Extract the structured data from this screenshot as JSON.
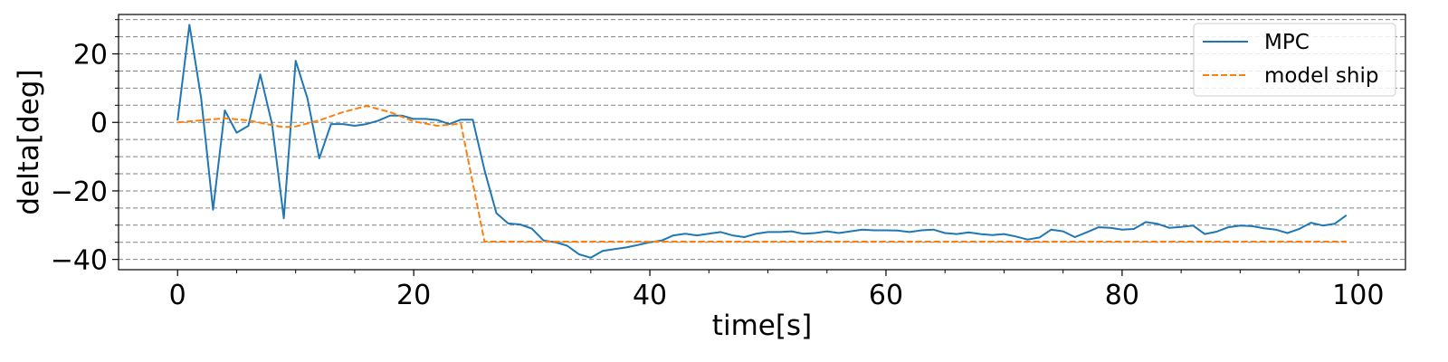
{
  "chart_data": {
    "type": "line",
    "title": "",
    "xlabel": "time[s]",
    "ylabel": "delta[deg]",
    "xlim": [
      -5,
      104
    ],
    "ylim": [
      -43,
      31.5
    ],
    "x_ticks": [
      0,
      20,
      40,
      60,
      80,
      100
    ],
    "x_tick_labels": [
      "0",
      "20",
      "40",
      "60",
      "80",
      "100"
    ],
    "x_minor_ticks": [
      5,
      10,
      15,
      25,
      30,
      35,
      45,
      50,
      55,
      65,
      70,
      75,
      85,
      90,
      95
    ],
    "y_ticks": [
      20,
      0,
      -20,
      -40
    ],
    "y_tick_labels": [
      "20",
      "0",
      "−20",
      "−40"
    ],
    "y_minor_ticks": [
      30,
      25,
      15,
      10,
      5,
      -5,
      -10,
      -15,
      -25,
      -30,
      -35
    ],
    "grid": {
      "axis": "y",
      "style": "dashed",
      "color": "#808080",
      "lines": [
        30,
        25,
        20,
        15,
        10,
        5,
        0,
        -5,
        -10,
        -15,
        -20,
        -25,
        -30,
        -35,
        -40
      ]
    },
    "legend": "top-right",
    "series": [
      {
        "name": "MPC",
        "color": "#1f77b4",
        "style": "solid",
        "x": [
          0,
          1,
          2,
          3,
          4,
          5,
          6,
          7,
          8,
          9,
          10,
          11,
          12,
          13,
          14,
          15,
          16,
          17,
          18,
          19,
          20,
          21,
          22,
          23,
          24,
          25,
          26,
          27,
          28,
          29,
          30,
          31,
          32,
          33,
          34,
          35,
          36,
          37,
          38,
          39,
          40,
          41,
          42,
          43,
          44,
          45,
          46,
          47,
          48,
          49,
          50,
          51,
          52,
          53,
          54,
          55,
          56,
          57,
          58,
          59,
          60,
          61,
          62,
          63,
          64,
          65,
          66,
          67,
          68,
          69,
          70,
          71,
          72,
          73,
          74,
          75,
          76,
          77,
          78,
          79,
          80,
          81,
          82,
          83,
          84,
          85,
          86,
          87,
          88,
          89,
          90,
          91,
          92,
          93,
          94,
          95,
          96,
          97,
          98,
          99
        ],
        "y": [
          0.5,
          28.5,
          7,
          -25.5,
          3.5,
          -3,
          -1,
          14,
          -0.5,
          -28,
          18,
          7,
          -10.5,
          -0.5,
          -0.5,
          -1,
          -0.5,
          0.5,
          2,
          2,
          1,
          1,
          0.7,
          -0.5,
          0.8,
          0.8,
          -14,
          -26.5,
          -29.5,
          -29.8,
          -31,
          -34.5,
          -35,
          -36,
          -38.5,
          -39.5,
          -37.5,
          -37,
          -36.5,
          -35.8,
          -35,
          -34.5,
          -33,
          -32.5,
          -33,
          -32.5,
          -32,
          -33,
          -33.5,
          -32.5,
          -32,
          -32,
          -31.8,
          -32.5,
          -32.3,
          -31.8,
          -32.3,
          -31.8,
          -31.3,
          -31.5,
          -31.5,
          -31.6,
          -32,
          -31.5,
          -31.3,
          -32.3,
          -32.6,
          -32.1,
          -32.6,
          -32.9,
          -32.6,
          -33.3,
          -34.2,
          -33.6,
          -31.3,
          -31.8,
          -33.5,
          -32.1,
          -30.6,
          -30.8,
          -31.3,
          -31.1,
          -29.1,
          -29.6,
          -30.8,
          -30.5,
          -30.1,
          -32.6,
          -31.9,
          -30.6,
          -30.1,
          -30.3,
          -30.9,
          -31.3,
          -32.3,
          -31.1,
          -29.3,
          -30.1,
          -29.6,
          -27.1
        ]
      },
      {
        "name": "model ship",
        "color": "#ff7f0e",
        "style": "dashed",
        "x": [
          0,
          2,
          4,
          6,
          8,
          9,
          10,
          12,
          14,
          16,
          18,
          20,
          22,
          24,
          26,
          30,
          40,
          50,
          60,
          70,
          80,
          90,
          99
        ],
        "y": [
          0,
          0.6,
          1.2,
          0.6,
          -0.8,
          -1.4,
          -1.2,
          0.6,
          3,
          4.8,
          3,
          0.3,
          -1,
          -0.4,
          -34.8,
          -34.8,
          -34.8,
          -34.8,
          -34.8,
          -34.8,
          -34.8,
          -34.8,
          -34.8
        ]
      }
    ]
  }
}
